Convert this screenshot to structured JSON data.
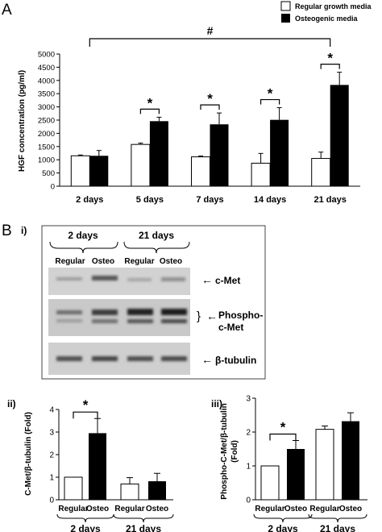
{
  "panels": {
    "a": "A",
    "b": "B",
    "b_i": "i)",
    "b_ii": "ii)",
    "b_iii": "iii)"
  },
  "legend": [
    {
      "label": "Regular growth media",
      "color": "#ffffff"
    },
    {
      "label": "Osteogenic media",
      "color": "#000000"
    }
  ],
  "blot": {
    "groups": [
      "2 days",
      "21 days"
    ],
    "lanes": [
      "Regular",
      "Osteo",
      "Regular",
      "Osteo"
    ],
    "rows": [
      {
        "label": "c-Met"
      },
      {
        "label": "Phospho-\nc-Met",
        "label_line1": "Phospho-",
        "label_line2": "c-Met"
      },
      {
        "label": "β-tubulin"
      }
    ],
    "arrow": "←"
  },
  "chart_data": [
    {
      "type": "bar",
      "categories": [
        "2 days",
        "5 days",
        "7 days",
        "14 days",
        "21 days"
      ],
      "series": [
        {
          "name": "Regular growth media",
          "values": [
            1150,
            1580,
            1110,
            870,
            1050
          ],
          "errors": [
            30,
            50,
            30,
            370,
            240
          ]
        },
        {
          "name": "Osteogenic media",
          "values": [
            1150,
            2460,
            2340,
            2510,
            3830
          ],
          "errors": [
            200,
            150,
            430,
            460,
            480
          ]
        }
      ],
      "ylabel": "HGF concentration (pg/ml)",
      "ylim": [
        0,
        5000
      ],
      "yticks": [
        "0",
        "500",
        "1000",
        "1500",
        "2000",
        "2500",
        "3000",
        "3500",
        "4000",
        "4500",
        "5000"
      ],
      "significance": [
        {
          "between": "5 days",
          "mark": "*"
        },
        {
          "between": "7 days",
          "mark": "*"
        },
        {
          "between": "14 days",
          "mark": "*"
        },
        {
          "between": "21 days",
          "mark": "*"
        },
        {
          "between": "2 days – 21 days",
          "mark": "#"
        }
      ]
    },
    {
      "type": "bar",
      "categories": [
        "Regular",
        "Osteo",
        "Regular",
        "Osteo"
      ],
      "groups": [
        "2 days",
        "21 days"
      ],
      "values": [
        1.0,
        2.95,
        0.7,
        0.82
      ],
      "errors": [
        0,
        0.65,
        0.28,
        0.35
      ],
      "fills": [
        "#ffffff",
        "#000000",
        "#ffffff",
        "#000000"
      ],
      "ylabel": "C-Met/β-tubulin (Fold)",
      "ylim": [
        0,
        4
      ],
      "yticks": [
        "0",
        "1",
        "2",
        "3",
        "4"
      ],
      "significance": [
        {
          "between": "Regular – Osteo (2 days)",
          "mark": "*"
        }
      ]
    },
    {
      "type": "bar",
      "categories": [
        "Regular",
        "Osteo",
        "Regular",
        "Osteo"
      ],
      "groups": [
        "2 days",
        "21 days"
      ],
      "values": [
        1.0,
        1.5,
        2.08,
        2.32
      ],
      "errors": [
        0,
        0.25,
        0.1,
        0.25
      ],
      "fills": [
        "#ffffff",
        "#000000",
        "#ffffff",
        "#000000"
      ],
      "ylabel": "Phospho-C-Met/β-tubulin (Fold)",
      "ylabel_line1": "Phospho-C-Met/β-tubulin",
      "ylabel_line2": "(Fold)",
      "ylim": [
        0,
        3
      ],
      "yticks": [
        "0",
        "1",
        "2",
        "3"
      ],
      "significance": [
        {
          "between": "Regular – Osteo (2 days)",
          "mark": "*"
        }
      ]
    }
  ]
}
